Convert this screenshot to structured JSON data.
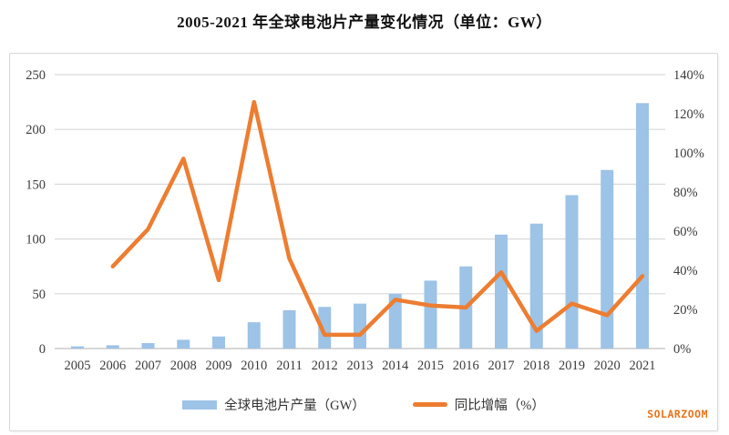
{
  "page": {
    "title": "2005-2021 年全球电池片产量变化情况（单位：GW）",
    "watermark": "SOLARZOOM"
  },
  "legend": {
    "bars_label": "全球电池片产量（GW）",
    "line_label": "同比增幅（%）"
  },
  "colors": {
    "bar": "#9DC3E6",
    "line": "#ED7D31",
    "gridline": "#D9D9D9",
    "baseline": "#BFBFBF",
    "axis_text": "#3b3b3b",
    "title_text": "#111111",
    "frame_border": "#D8D8D8",
    "watermark": "#E8731A"
  },
  "chart_data": {
    "type": "bar",
    "subtype": "combo-bar-line",
    "title": "2005-2021 年全球电池片产量变化情况（单位：GW）",
    "categories": [
      "2005",
      "2006",
      "2007",
      "2008",
      "2009",
      "2010",
      "2011",
      "2012",
      "2013",
      "2014",
      "2015",
      "2016",
      "2017",
      "2018",
      "2019",
      "2020",
      "2021"
    ],
    "series": [
      {
        "name": "全球电池片产量（GW）",
        "type": "bar",
        "axis": "left",
        "values": [
          2,
          3,
          5,
          8,
          11,
          24,
          35,
          38,
          41,
          50,
          62,
          75,
          104,
          114,
          140,
          163,
          224
        ]
      },
      {
        "name": "同比增幅（%）",
        "type": "line",
        "axis": "right",
        "values": [
          null,
          42,
          61,
          97,
          35,
          126,
          46,
          7,
          7,
          25,
          22,
          21,
          39,
          9,
          23,
          17,
          37
        ]
      }
    ],
    "left_axis": {
      "label": "",
      "min": 0,
      "max": 250,
      "step": 50,
      "ticks": [
        "0",
        "50",
        "100",
        "150",
        "200",
        "250"
      ]
    },
    "right_axis": {
      "label": "",
      "min": 0,
      "max": 140,
      "step": 20,
      "ticks": [
        "0%",
        "20%",
        "40%",
        "60%",
        "80%",
        "100%",
        "120%",
        "140%"
      ]
    },
    "grid": true,
    "legend_position": "bottom"
  }
}
